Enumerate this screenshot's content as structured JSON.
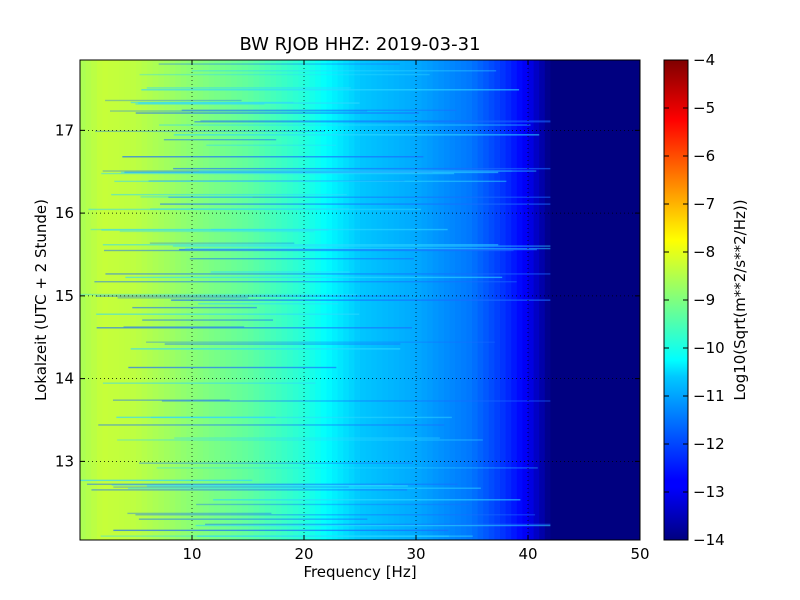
{
  "chart_data": {
    "type": "heatmap",
    "title": "BW RJOB HHZ: 2019-03-31",
    "xlabel": "Frequency [Hz]",
    "ylabel": "Lokalzeit (UTC + 2 Stunde)",
    "xlim": [
      0,
      50
    ],
    "ylim": [
      17.85,
      12.05
    ],
    "x_ticks": [
      10,
      20,
      30,
      40,
      50
    ],
    "y_ticks": [
      13,
      14,
      15,
      16,
      17
    ],
    "grid": true,
    "colormap": "jet",
    "colorbar": {
      "label": "Log10(Sqrt(m**2/s**2/Hz))",
      "range": [
        -14,
        -4
      ],
      "ticks": [
        -4,
        -5,
        -6,
        -7,
        -8,
        -9,
        -10,
        -11,
        -12,
        -13,
        -14
      ]
    },
    "frequency_profile": [
      {
        "hz": 0,
        "value": -8.6
      },
      {
        "hz": 2,
        "value": -8.3
      },
      {
        "hz": 5,
        "value": -8.4
      },
      {
        "hz": 10,
        "value": -8.9
      },
      {
        "hz": 15,
        "value": -9.3
      },
      {
        "hz": 20,
        "value": -9.9
      },
      {
        "hz": 25,
        "value": -10.8
      },
      {
        "hz": 30,
        "value": -11.1
      },
      {
        "hz": 35,
        "value": -11.6
      },
      {
        "hz": 38,
        "value": -12.3
      },
      {
        "hz": 40,
        "value": -12.9
      },
      {
        "hz": 42,
        "value": -14.0
      },
      {
        "hz": 50,
        "value": -14.0
      }
    ]
  }
}
